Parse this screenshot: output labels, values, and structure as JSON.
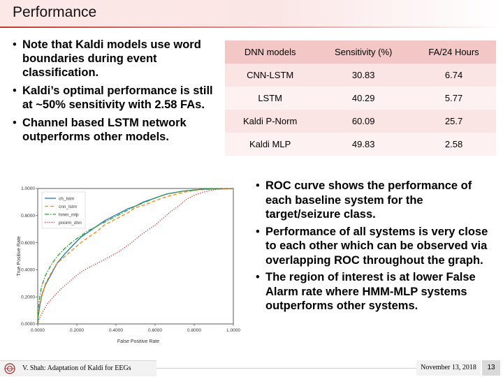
{
  "slide": {
    "title": "Performance",
    "left_bullets": [
      "Note that Kaldi models use word boundaries during event classification.",
      "Kaldi’s optimal performance is still at ~50% sensitivity with 2.58 FAs.",
      "Channel based LSTM network outperforms other models."
    ],
    "right_bullets": [
      "ROC curve shows the performance of each baseline system for the target/seizure class.",
      "Performance of all systems is very close to each other which can be observed via overlapping ROC throughout the graph.",
      "The region of interest is at lower False Alarm rate where HMM-MLP systems outperforms other systems."
    ]
  },
  "results_table": {
    "headers": [
      "DNN models",
      "Sensitivity (%)",
      "FA/24 Hours"
    ],
    "rows": [
      [
        "CNN-LSTM",
        "30.83",
        "6.74"
      ],
      [
        "LSTM",
        "40.29",
        "5.77"
      ],
      [
        "Kaldi P-Norm",
        "60.09",
        "25.7"
      ],
      [
        "Kaldi MLP",
        "49.83",
        "2.58"
      ]
    ],
    "header_color": "#f4c7c7",
    "row_colors": [
      "#fbe4e4",
      "#fdf1f1"
    ]
  },
  "chart_data": {
    "type": "line",
    "title": "",
    "xlabel": "False Positive Rate",
    "ylabel": "True Positive Rate",
    "xlim": [
      0,
      1
    ],
    "ylim": [
      0,
      1
    ],
    "xticks": [
      "0.0000",
      "0.2000",
      "0.4000",
      "0.6000",
      "0.8000",
      "1.0000"
    ],
    "yticks": [
      "0.0000",
      "0.2000",
      "0.4000",
      "0.6000",
      "0.8000",
      "1.0000"
    ],
    "grid": false,
    "legend_position": "top-left",
    "series": [
      {
        "name": "ch_lstm",
        "color": "#1f77b4",
        "dash": "solid",
        "x": [
          0,
          0.003,
          0.01,
          0.02,
          0.04,
          0.07,
          0.1,
          0.14,
          0.18,
          0.22,
          0.26,
          0.3,
          0.34,
          0.38,
          0.42,
          0.46,
          0.5,
          0.54,
          0.6,
          0.66,
          0.74,
          0.84,
          1.0
        ],
        "y": [
          0,
          0.06,
          0.13,
          0.21,
          0.29,
          0.37,
          0.45,
          0.52,
          0.58,
          0.64,
          0.68,
          0.72,
          0.76,
          0.79,
          0.82,
          0.85,
          0.87,
          0.9,
          0.93,
          0.96,
          0.98,
          0.995,
          1.0
        ]
      },
      {
        "name": "cnn_lstm",
        "color": "#ff7f0e",
        "dash": "dashed",
        "x": [
          0,
          0.003,
          0.01,
          0.02,
          0.04,
          0.07,
          0.1,
          0.14,
          0.18,
          0.22,
          0.26,
          0.3,
          0.34,
          0.38,
          0.42,
          0.46,
          0.5,
          0.55,
          0.6,
          0.66,
          0.74,
          0.82,
          1.0
        ],
        "y": [
          0,
          0.05,
          0.12,
          0.2,
          0.3,
          0.38,
          0.45,
          0.5,
          0.55,
          0.6,
          0.64,
          0.68,
          0.73,
          0.76,
          0.79,
          0.82,
          0.86,
          0.88,
          0.91,
          0.94,
          0.97,
          0.99,
          1.0
        ]
      },
      {
        "name": "hmm_mlp",
        "color": "#2ca02c",
        "dash": "dashdot",
        "x": [
          0,
          0.003,
          0.01,
          0.02,
          0.04,
          0.07,
          0.1,
          0.14,
          0.18,
          0.22,
          0.26,
          0.3,
          0.34,
          0.38,
          0.42,
          0.46,
          0.5,
          0.55,
          0.6,
          0.66,
          0.74,
          0.84,
          1.0
        ],
        "y": [
          0,
          0.1,
          0.2,
          0.28,
          0.36,
          0.44,
          0.5,
          0.56,
          0.61,
          0.65,
          0.69,
          0.72,
          0.75,
          0.78,
          0.81,
          0.84,
          0.87,
          0.9,
          0.93,
          0.96,
          0.98,
          0.995,
          1.0
        ]
      },
      {
        "name": "pnorm_dnn",
        "color": "#d62728",
        "dash": "dotted",
        "x": [
          0,
          0.005,
          0.015,
          0.03,
          0.05,
          0.08,
          0.12,
          0.16,
          0.2,
          0.24,
          0.28,
          0.32,
          0.36,
          0.4,
          0.44,
          0.48,
          0.52,
          0.56,
          0.6,
          0.64,
          0.68,
          0.72,
          0.76,
          0.8,
          0.84,
          0.88,
          0.92,
          1.0
        ],
        "y": [
          0,
          0.03,
          0.06,
          0.1,
          0.15,
          0.2,
          0.26,
          0.31,
          0.36,
          0.4,
          0.43,
          0.46,
          0.49,
          0.52,
          0.56,
          0.6,
          0.65,
          0.69,
          0.73,
          0.78,
          0.83,
          0.87,
          0.92,
          0.95,
          0.97,
          0.985,
          0.995,
          1.0
        ]
      }
    ]
  },
  "footer": {
    "author": "V. Shah: Adaptation of Kaldi for EEGs",
    "date": "November 13, 2018",
    "page": "13"
  }
}
